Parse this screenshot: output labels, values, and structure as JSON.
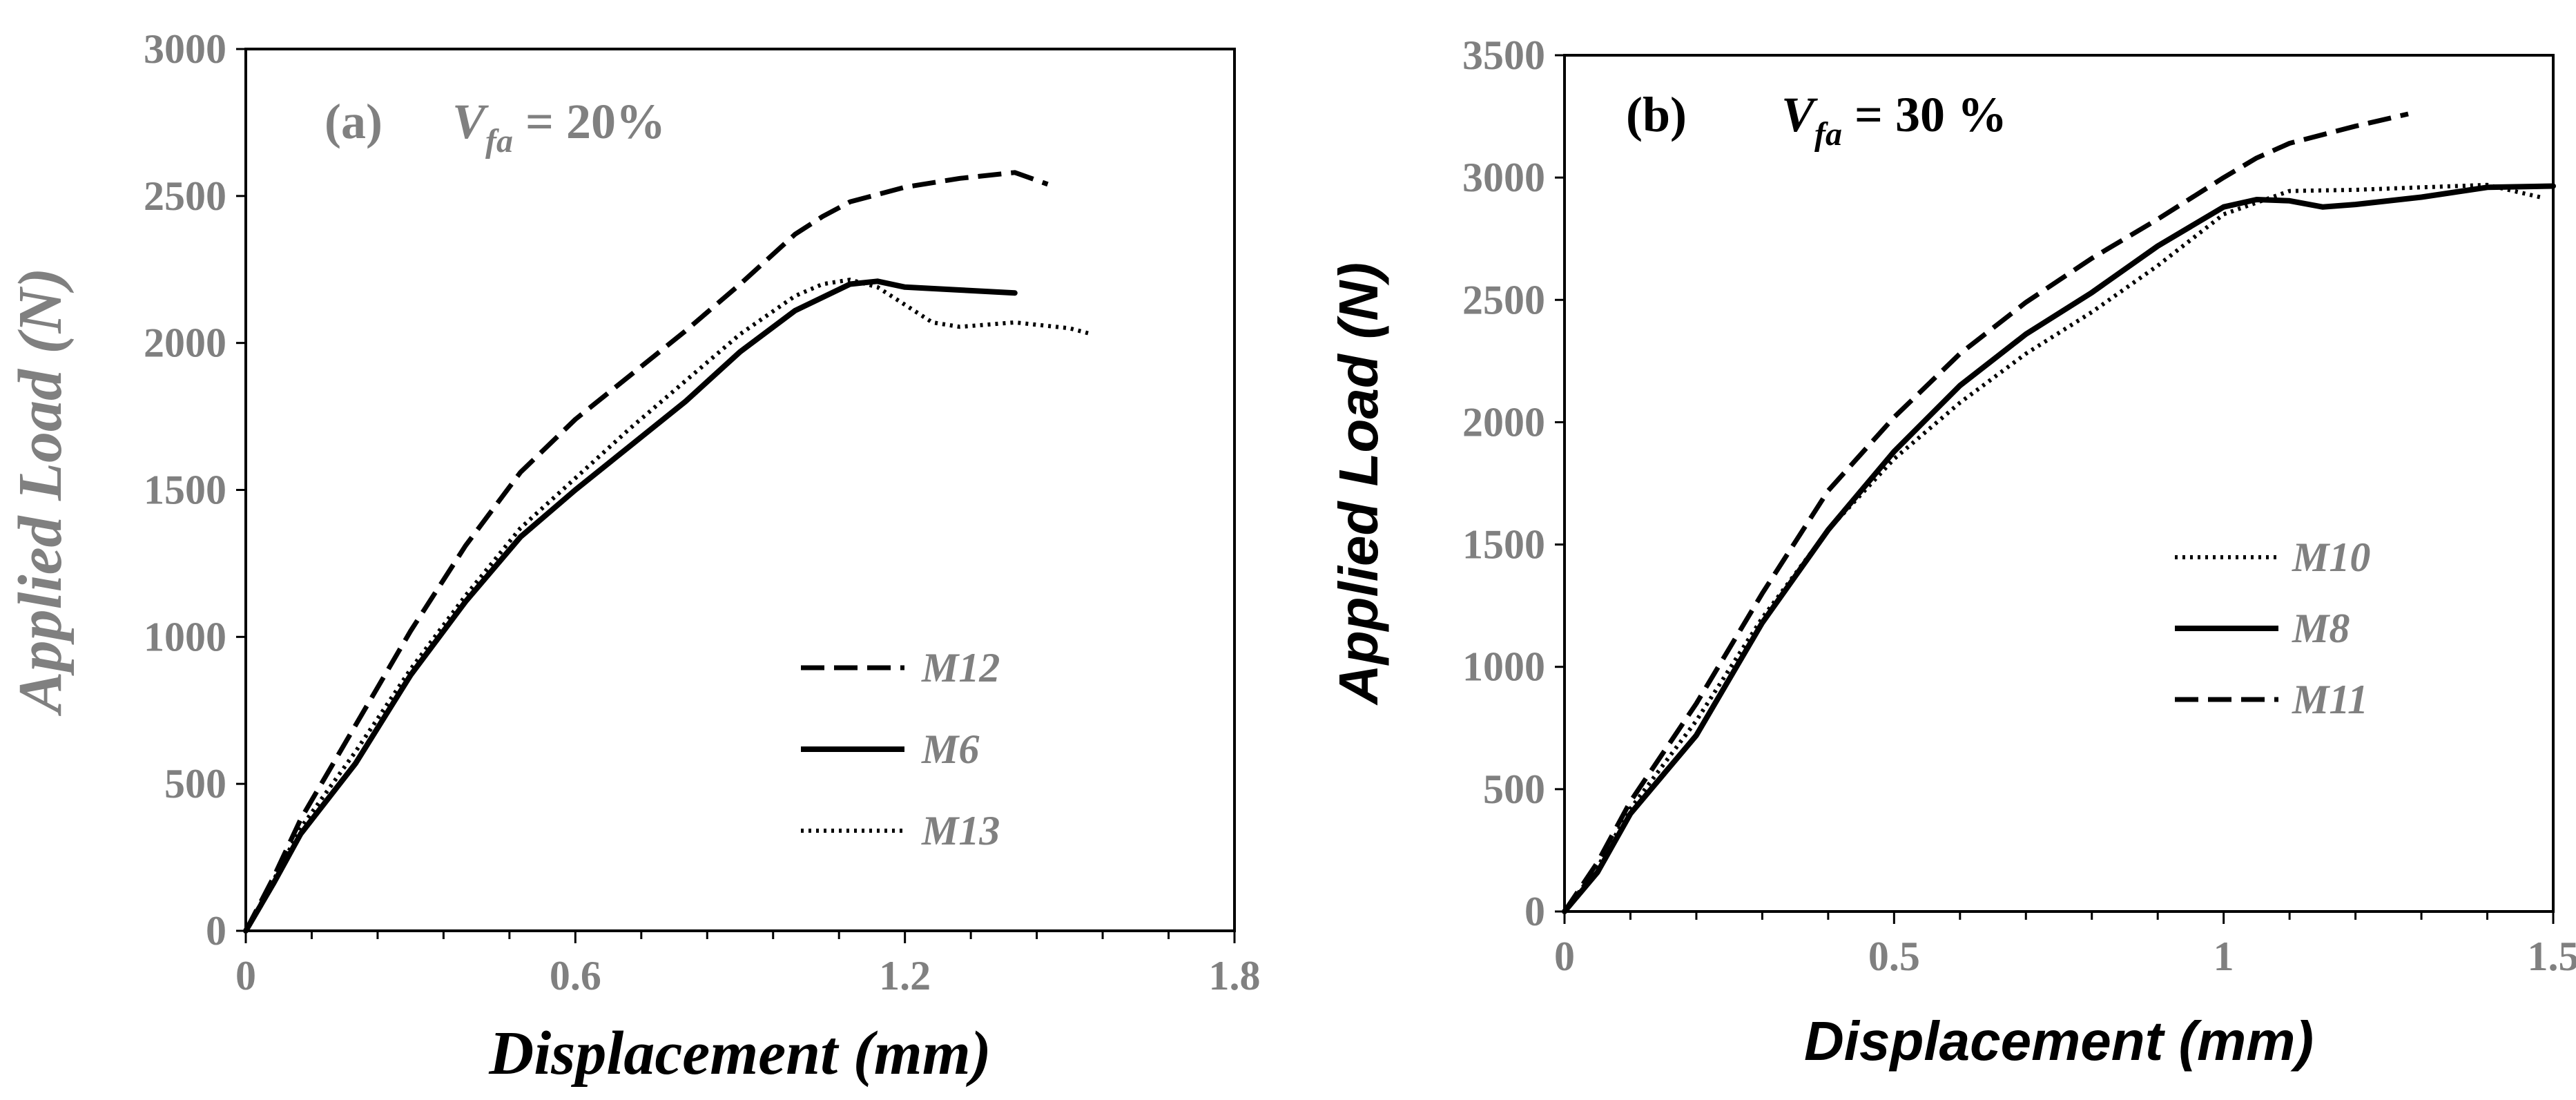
{
  "chart_data": [
    {
      "type": "line",
      "panel_label": "(a)",
      "annotation": {
        "var": "V",
        "sub": "fa",
        "text": " = 20%"
      },
      "xlabel": "Displacement (mm)",
      "ylabel": "Applied Load (N)",
      "xlim": [
        0,
        1.8
      ],
      "ylim": [
        0,
        3000
      ],
      "xticks": [
        0,
        0.6,
        1.2,
        1.8
      ],
      "xtick_labels": [
        "0",
        "0.6",
        "1.2",
        "1.8"
      ],
      "yticks": [
        0,
        500,
        1000,
        1500,
        2000,
        2500,
        3000
      ],
      "ytick_labels": [
        "0",
        "500",
        "1000",
        "1500",
        "2000",
        "2500",
        "3000"
      ],
      "colors": {
        "line": "#000000",
        "tick_text": "#808080",
        "ylabel": "#808080",
        "annotation": "#808080"
      },
      "legend_position": "center-right",
      "series": [
        {
          "name": "M12",
          "dash": "dashed",
          "x": [
            0,
            0.05,
            0.1,
            0.2,
            0.3,
            0.4,
            0.5,
            0.6,
            0.7,
            0.8,
            0.9,
            1.0,
            1.05,
            1.1,
            1.2,
            1.3,
            1.4,
            1.46
          ],
          "y": [
            0,
            180,
            380,
            700,
            1020,
            1310,
            1560,
            1740,
            1890,
            2040,
            2200,
            2370,
            2430,
            2480,
            2530,
            2560,
            2580,
            2540
          ]
        },
        {
          "name": "M6",
          "dash": "solid",
          "x": [
            0,
            0.05,
            0.1,
            0.2,
            0.3,
            0.4,
            0.5,
            0.6,
            0.7,
            0.8,
            0.9,
            1.0,
            1.1,
            1.15,
            1.2,
            1.3,
            1.4
          ],
          "y": [
            0,
            160,
            330,
            570,
            870,
            1120,
            1340,
            1500,
            1650,
            1800,
            1970,
            2110,
            2200,
            2210,
            2190,
            2180,
            2170
          ]
        },
        {
          "name": "M13",
          "dash": "dotted",
          "x": [
            0,
            0.05,
            0.1,
            0.2,
            0.3,
            0.4,
            0.5,
            0.6,
            0.7,
            0.8,
            0.9,
            1.0,
            1.05,
            1.1,
            1.15,
            1.2,
            1.25,
            1.3,
            1.4,
            1.5,
            1.54
          ],
          "y": [
            0,
            170,
            350,
            610,
            890,
            1140,
            1370,
            1540,
            1710,
            1870,
            2030,
            2160,
            2200,
            2215,
            2190,
            2130,
            2070,
            2055,
            2070,
            2050,
            2030
          ]
        }
      ]
    },
    {
      "type": "line",
      "panel_label": "(b)",
      "annotation": {
        "var": "V",
        "sub": "fa",
        "text": " = 30 %"
      },
      "xlabel": "Displacement  (mm)",
      "ylabel": "Applied Load (N)",
      "xlim": [
        0,
        1.5
      ],
      "ylim": [
        0,
        3500
      ],
      "xticks": [
        0,
        0.5,
        1,
        1.5
      ],
      "xtick_labels": [
        "0",
        "0.5",
        "1",
        "1.5"
      ],
      "yticks": [
        0,
        500,
        1000,
        1500,
        2000,
        2500,
        3000,
        3500
      ],
      "ytick_labels": [
        "0",
        "500",
        "1000",
        "1500",
        "2000",
        "2500",
        "3000",
        "3500"
      ],
      "colors": {
        "line": "#000000",
        "tick_text": "#808080",
        "ylabel": "#000000",
        "annotation": "#000000"
      },
      "legend_position": "center-right",
      "series": [
        {
          "name": "M10",
          "dash": "dotted",
          "x": [
            0,
            0.05,
            0.1,
            0.2,
            0.3,
            0.4,
            0.5,
            0.6,
            0.7,
            0.8,
            0.9,
            1.0,
            1.1,
            1.2,
            1.3,
            1.4,
            1.48
          ],
          "y": [
            0,
            180,
            420,
            780,
            1200,
            1560,
            1850,
            2080,
            2280,
            2450,
            2640,
            2850,
            2945,
            2950,
            2960,
            2970,
            2920
          ]
        },
        {
          "name": "M8",
          "dash": "solid",
          "x": [
            0,
            0.05,
            0.1,
            0.2,
            0.3,
            0.4,
            0.5,
            0.6,
            0.7,
            0.8,
            0.9,
            1.0,
            1.05,
            1.1,
            1.15,
            1.2,
            1.3,
            1.4,
            1.5
          ],
          "y": [
            0,
            160,
            400,
            720,
            1180,
            1560,
            1880,
            2150,
            2360,
            2530,
            2720,
            2880,
            2910,
            2905,
            2880,
            2890,
            2920,
            2960,
            2965
          ]
        },
        {
          "name": "M11",
          "dash": "dashed",
          "x": [
            0,
            0.05,
            0.1,
            0.2,
            0.3,
            0.4,
            0.5,
            0.6,
            0.7,
            0.8,
            0.9,
            1.0,
            1.05,
            1.1,
            1.2,
            1.28
          ],
          "y": [
            0,
            200,
            450,
            850,
            1300,
            1720,
            2020,
            2280,
            2490,
            2670,
            2830,
            3000,
            3080,
            3140,
            3210,
            3260
          ]
        }
      ]
    }
  ],
  "legend_a": [
    "M12",
    "M6",
    "M13"
  ],
  "legend_b": [
    "M10",
    "M8",
    "M11"
  ]
}
